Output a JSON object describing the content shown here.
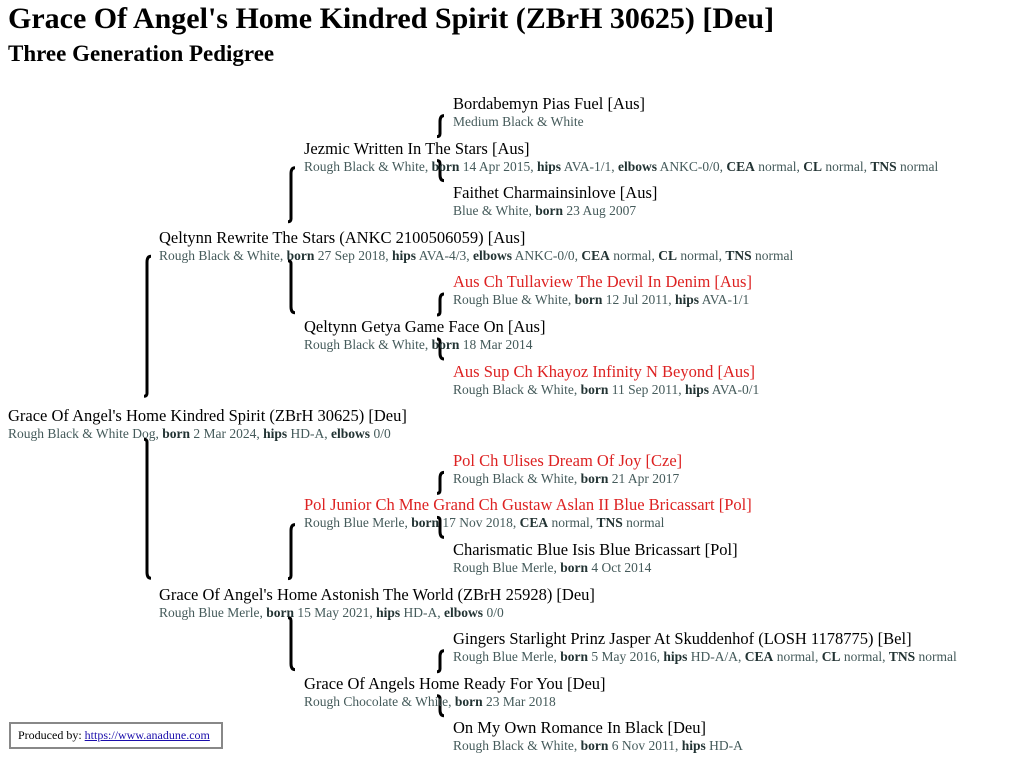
{
  "title": "Grace Of Angel's Home Kindred Spirit (ZBrH 30625) [Deu]",
  "subtitle": "Three Generation Pedigree",
  "dogs": [
    {
      "name": "Bordabemyn Pias Fuel [Aus]",
      "titled": false,
      "desc": "Medium Black & White",
      "fields": []
    },
    {
      "name": "Jezmic Written In The Stars [Aus]",
      "titled": false,
      "desc": "Rough Black & White",
      "fields": [
        {
          "label": "born",
          "value": "14 Apr 2015"
        },
        {
          "label": "hips",
          "value": "AVA-1/1"
        },
        {
          "label": "elbows",
          "value": "ANKC-0/0"
        },
        {
          "label": "CEA",
          "value": "normal"
        },
        {
          "label": "CL",
          "value": "normal"
        },
        {
          "label": "TNS",
          "value": "normal"
        }
      ]
    },
    {
      "name": "Faithet Charmainsinlove [Aus]",
      "titled": false,
      "desc": "Blue & White",
      "fields": [
        {
          "label": "born",
          "value": "23 Aug 2007"
        }
      ]
    },
    {
      "name": "Qeltynn Rewrite The Stars (ANKC 2100506059) [Aus]",
      "titled": false,
      "desc": "Rough Black & White",
      "fields": [
        {
          "label": "born",
          "value": "27 Sep 2018"
        },
        {
          "label": "hips",
          "value": "AVA-4/3"
        },
        {
          "label": "elbows",
          "value": "ANKC-0/0"
        },
        {
          "label": "CEA",
          "value": "normal"
        },
        {
          "label": "CL",
          "value": "normal"
        },
        {
          "label": "TNS",
          "value": "normal"
        }
      ]
    },
    {
      "name": "Aus Ch Tullaview The Devil In Denim [Aus]",
      "titled": true,
      "desc": "Rough Blue & White",
      "fields": [
        {
          "label": "born",
          "value": "12 Jul 2011"
        },
        {
          "label": "hips",
          "value": "AVA-1/1"
        }
      ]
    },
    {
      "name": "Qeltynn Getya Game Face On [Aus]",
      "titled": false,
      "desc": "Rough Black & White",
      "fields": [
        {
          "label": "born",
          "value": "18 Mar 2014"
        }
      ]
    },
    {
      "name": "Aus Sup Ch Khayoz Infinity N Beyond [Aus]",
      "titled": true,
      "desc": "Rough Black & White",
      "fields": [
        {
          "label": "born",
          "value": "11 Sep 2011"
        },
        {
          "label": "hips",
          "value": "AVA-0/1"
        }
      ]
    },
    {
      "name": "Grace Of Angel's Home Kindred Spirit (ZBrH 30625) [Deu]",
      "titled": false,
      "desc": "Rough Black & White Dog",
      "fields": [
        {
          "label": "born",
          "value": "2 Mar 2024"
        },
        {
          "label": "hips",
          "value": "HD-A"
        },
        {
          "label": "elbows",
          "value": "0/0"
        }
      ]
    },
    {
      "name": "Pol Ch Ulises Dream Of Joy [Cze]",
      "titled": true,
      "desc": "Rough Black & White",
      "fields": [
        {
          "label": "born",
          "value": "21 Apr 2017"
        }
      ]
    },
    {
      "name": "Pol Junior Ch Mne Grand Ch Gustaw Aslan II Blue Bricassart [Pol]",
      "titled": true,
      "desc": "Rough Blue Merle",
      "fields": [
        {
          "label": "born",
          "value": "17 Nov 2018"
        },
        {
          "label": "CEA",
          "value": "normal"
        },
        {
          "label": "TNS",
          "value": "normal"
        }
      ]
    },
    {
      "name": "Charismatic Blue Isis Blue Bricassart [Pol]",
      "titled": false,
      "desc": "Rough Blue Merle",
      "fields": [
        {
          "label": "born",
          "value": "4 Oct 2014"
        }
      ]
    },
    {
      "name": "Grace Of Angel's Home Astonish The World (ZBrH 25928) [Deu]",
      "titled": false,
      "desc": "Rough Blue Merle",
      "fields": [
        {
          "label": "born",
          "value": "15 May 2021"
        },
        {
          "label": "hips",
          "value": "HD-A"
        },
        {
          "label": "elbows",
          "value": "0/0"
        }
      ]
    },
    {
      "name": "Gingers Starlight Prinz Jasper At Skuddenhof (LOSH 1178775) [Bel]",
      "titled": false,
      "desc": "Rough Blue Merle",
      "fields": [
        {
          "label": "born",
          "value": "5 May 2016"
        },
        {
          "label": "hips",
          "value": "HD-A/A"
        },
        {
          "label": "CEA",
          "value": "normal"
        },
        {
          "label": "CL",
          "value": "normal"
        },
        {
          "label": "TNS",
          "value": "normal"
        }
      ]
    },
    {
      "name": "Grace Of Angels Home Ready For You [Deu]",
      "titled": false,
      "desc": "Rough Chocolate & White",
      "fields": [
        {
          "label": "born",
          "value": "23 Mar 2018"
        }
      ]
    },
    {
      "name": "On My Own Romance In Black [Deu]",
      "titled": false,
      "desc": "Rough Black & White",
      "fields": [
        {
          "label": "born",
          "value": "6 Nov 2011"
        },
        {
          "label": "hips",
          "value": "HD-A"
        }
      ]
    }
  ],
  "footer": {
    "label": "Produced by:",
    "link": "https://www.anadune.com"
  }
}
